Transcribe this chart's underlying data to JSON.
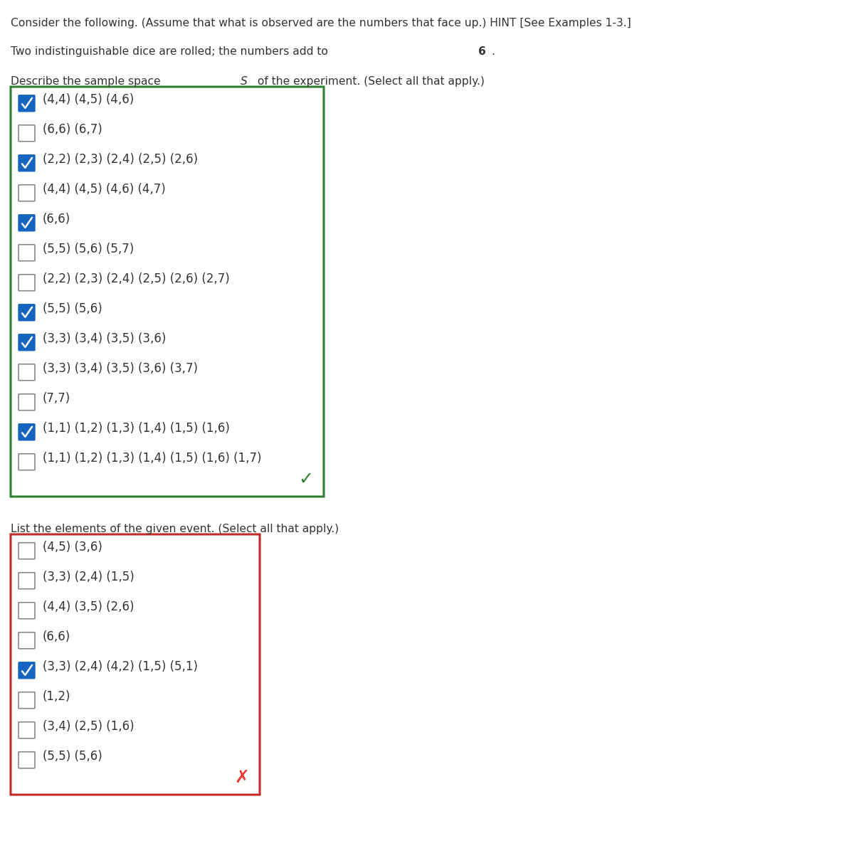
{
  "header_line1": "Consider the following. (Assume that what is observed are the numbers that face up.) HINT [See Examples 1-3.]",
  "header_line2": "Two indistinguishable dice are rolled; the numbers add to ",
  "header_bold": "6",
  "header_line2_end": ".",
  "section1_label": "Describe the sample space ",
  "section1_italic": "S",
  "section1_label2": " of the experiment. (Select all that apply.)",
  "section2_label": "List the elements of the given event. (Select all that apply.)",
  "box1_color": "#2e7d32",
  "box2_color": "#c62828",
  "checkmark_color": "#2e7d32",
  "xmark_color": "#e53935",
  "checkbox_checked_color": "#1565c0",
  "checkbox_unchecked_color": "#ffffff",
  "checkbox_border_color": "#555555",
  "text_color": "#333333",
  "background_color": "#ffffff",
  "section1_items": [
    {
      "text": "(4,4) (4,5) (4,6)",
      "checked": true
    },
    {
      "text": "(6,6) (6,7)",
      "checked": false
    },
    {
      "text": "(2,2) (2,3) (2,4) (2,5) (2,6)",
      "checked": true
    },
    {
      "text": "(4,4) (4,5) (4,6) (4,7)",
      "checked": false
    },
    {
      "text": "(6,6)",
      "checked": true
    },
    {
      "text": "(5,5) (5,6) (5,7)",
      "checked": false
    },
    {
      "text": "(2,2) (2,3) (2,4) (2,5) (2,6) (2,7)",
      "checked": false
    },
    {
      "text": "(5,5) (5,6)",
      "checked": true
    },
    {
      "text": "(3,3) (3,4) (3,5) (3,6)",
      "checked": true
    },
    {
      "text": "(3,3) (3,4) (3,5) (3,6) (3,7)",
      "checked": false
    },
    {
      "text": "(7,7)",
      "checked": false
    },
    {
      "text": "(1,1) (1,2) (1,3) (1,4) (1,5) (1,6)",
      "checked": true
    },
    {
      "text": "(1,1) (1,2) (1,3) (1,4) (1,5) (1,6) (1,7)",
      "checked": false
    }
  ],
  "section2_items": [
    {
      "text": "(4,5) (3,6)",
      "checked": false
    },
    {
      "text": "(3,3) (2,4) (1,5)",
      "checked": false
    },
    {
      "text": "(4,4) (3,5) (2,6)",
      "checked": false
    },
    {
      "text": "(6,6)",
      "checked": false
    },
    {
      "text": "(3,3) (2,4) (4,2) (1,5) (5,1)",
      "checked": true
    },
    {
      "text": "(1,2)",
      "checked": false
    },
    {
      "text": "(3,4) (2,5) (1,6)",
      "checked": false
    },
    {
      "text": "(5,5) (5,6)",
      "checked": false
    }
  ]
}
